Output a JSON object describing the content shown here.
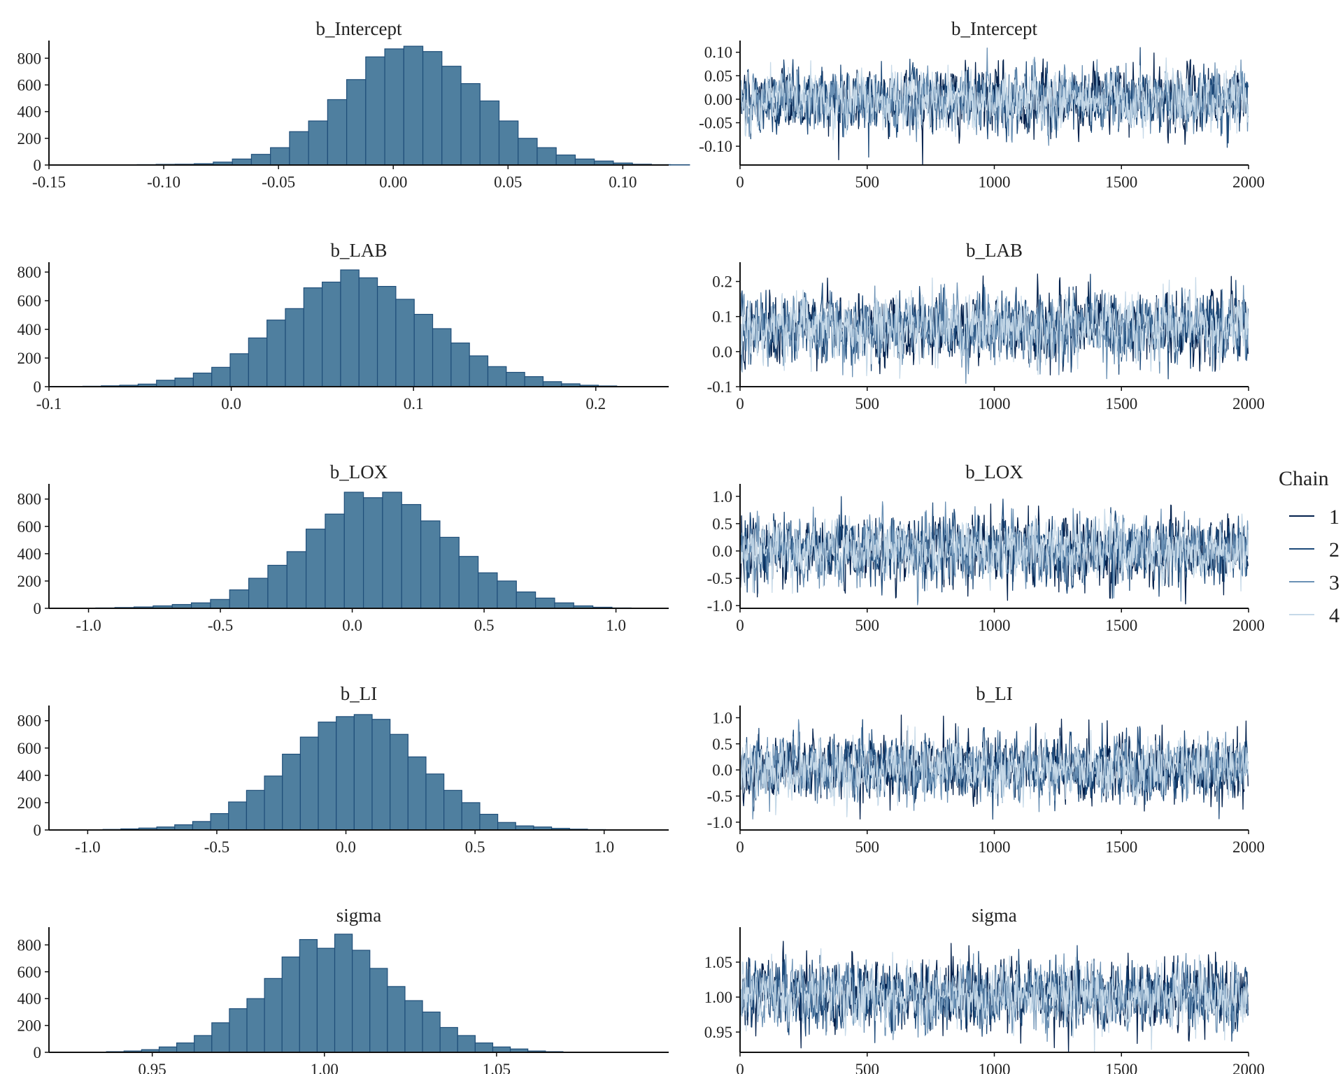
{
  "figure": {
    "colors": {
      "hist_fill": "#4f7f9f",
      "hist_border": "#1f4e79",
      "axis": "#111111",
      "chain_colors": [
        "#011f4b",
        "#1d4a7a",
        "#6a90b4",
        "#c6d9e8"
      ]
    },
    "legend": {
      "title": "Chain",
      "placement": "right",
      "items": [
        {
          "label": "1",
          "color": "#011f4b"
        },
        {
          "label": "2",
          "color": "#1d4a7a"
        },
        {
          "label": "3",
          "color": "#6a90b4"
        },
        {
          "label": "4",
          "color": "#c6d9e8"
        }
      ]
    }
  },
  "chart_data": [
    {
      "type": "bar",
      "title": "b_Intercept",
      "xlim": [
        -0.15,
        0.12
      ],
      "ylim": [
        0,
        880
      ],
      "xticks": [
        -0.15,
        -0.1,
        -0.05,
        0.0,
        0.05,
        0.1
      ],
      "xtick_labels": [
        "-0.15",
        "-0.10",
        "-0.05",
        "0.00",
        "0.05",
        "0.10"
      ],
      "yticks": [
        0,
        200,
        400,
        600,
        800
      ],
      "ytick_labels": [
        "0",
        "200",
        "400",
        "600",
        "800"
      ],
      "bin_width": 0.0083,
      "bin_start": -0.1365,
      "values": [
        1,
        1,
        2,
        3,
        5,
        6,
        10,
        22,
        45,
        80,
        130,
        250,
        330,
        490,
        640,
        810,
        870,
        890,
        850,
        740,
        610,
        480,
        330,
        200,
        130,
        75,
        45,
        30,
        15,
        6,
        3,
        2
      ]
    },
    {
      "type": "line",
      "title": "b_Intercept",
      "xlim": [
        0,
        2000
      ],
      "ylim": [
        -0.14,
        0.11
      ],
      "xticks": [
        0,
        500,
        1000,
        1500,
        2000
      ],
      "xtick_labels": [
        "0",
        "500",
        "1000",
        "1500",
        "2000"
      ],
      "yticks": [
        0.1,
        0.05,
        0.0,
        -0.05,
        -0.1
      ],
      "ytick_labels": [
        "0.10",
        "0.05",
        "0.00",
        "-0.05",
        "-0.10"
      ],
      "iterations": 2000,
      "series": [
        {
          "name": "1",
          "center": 0.0,
          "sd": 0.033
        },
        {
          "name": "2",
          "center": 0.0,
          "sd": 0.032
        },
        {
          "name": "3",
          "center": 0.0,
          "sd": 0.031
        },
        {
          "name": "4",
          "center": 0.0,
          "sd": 0.03
        }
      ]
    },
    {
      "type": "bar",
      "title": "b_LAB",
      "xlim": [
        -0.1,
        0.24
      ],
      "ylim": [
        0,
        820
      ],
      "xticks": [
        -0.1,
        0.0,
        0.1,
        0.2
      ],
      "xtick_labels": [
        "-0.1",
        "0.0",
        "0.1",
        "0.2"
      ],
      "yticks": [
        0,
        200,
        400,
        600,
        800
      ],
      "ytick_labels": [
        "0",
        "200",
        "400",
        "600",
        "800"
      ],
      "bin_width": 0.0101,
      "bin_start": -0.0915,
      "values": [
        1,
        3,
        6,
        10,
        18,
        45,
        60,
        95,
        135,
        230,
        340,
        465,
        545,
        690,
        730,
        815,
        760,
        700,
        610,
        505,
        405,
        305,
        215,
        140,
        100,
        70,
        35,
        20,
        10,
        5,
        2
      ]
    },
    {
      "type": "line",
      "title": "b_LAB",
      "xlim": [
        0,
        2000
      ],
      "ylim": [
        -0.1,
        0.235
      ],
      "xticks": [
        0,
        500,
        1000,
        1500,
        2000
      ],
      "xtick_labels": [
        "0",
        "500",
        "1000",
        "1500",
        "2000"
      ],
      "yticks": [
        0.2,
        0.1,
        0.0,
        -0.1
      ],
      "ytick_labels": [
        "0.2",
        "0.1",
        "0.0",
        "-0.1"
      ],
      "iterations": 2000,
      "series": [
        {
          "name": "1",
          "center": 0.068,
          "sd": 0.047
        },
        {
          "name": "2",
          "center": 0.068,
          "sd": 0.046
        },
        {
          "name": "3",
          "center": 0.068,
          "sd": 0.045
        },
        {
          "name": "4",
          "center": 0.068,
          "sd": 0.044
        }
      ]
    },
    {
      "type": "bar",
      "title": "b_LOX",
      "xlim": [
        -1.15,
        1.2
      ],
      "ylim": [
        0,
        860
      ],
      "xticks": [
        -1.0,
        -0.5,
        0.0,
        0.5,
        1.0
      ],
      "xtick_labels": [
        "-1.0",
        "-0.5",
        "0.0",
        "0.5",
        "1.0"
      ],
      "yticks": [
        0,
        200,
        400,
        600,
        800
      ],
      "ytick_labels": [
        "0",
        "200",
        "400",
        "600",
        "800"
      ],
      "bin_width": 0.0725,
      "bin_start": -1.045,
      "values": [
        1,
        3,
        6,
        10,
        18,
        28,
        40,
        65,
        135,
        220,
        315,
        415,
        580,
        690,
        850,
        810,
        850,
        760,
        640,
        520,
        380,
        260,
        200,
        120,
        75,
        40,
        18,
        8,
        3,
        1
      ]
    },
    {
      "type": "line",
      "title": "b_LOX",
      "xlim": [
        0,
        2000
      ],
      "ylim": [
        -1.05,
        1.1
      ],
      "xticks": [
        0,
        500,
        1000,
        1500,
        2000
      ],
      "xtick_labels": [
        "0",
        "500",
        "1000",
        "1500",
        "2000"
      ],
      "yticks": [
        1.0,
        0.5,
        0.0,
        -0.5,
        -1.0
      ],
      "ytick_labels": [
        "1.0",
        "0.5",
        "0.0",
        "-0.5",
        "-1.0"
      ],
      "iterations": 2000,
      "series": [
        {
          "name": "1",
          "center": 0.02,
          "sd": 0.3
        },
        {
          "name": "2",
          "center": 0.02,
          "sd": 0.29
        },
        {
          "name": "3",
          "center": 0.02,
          "sd": 0.28
        },
        {
          "name": "4",
          "center": 0.02,
          "sd": 0.27
        }
      ]
    },
    {
      "type": "bar",
      "title": "b_LI",
      "xlim": [
        -1.15,
        1.25
      ],
      "ylim": [
        0,
        860
      ],
      "xticks": [
        -1.0,
        -0.5,
        0.0,
        0.5,
        1.0
      ],
      "xtick_labels": [
        "-1.0",
        "-0.5",
        "0.0",
        "0.5",
        "1.0"
      ],
      "yticks": [
        0,
        200,
        400,
        600,
        800
      ],
      "ytick_labels": [
        "0",
        "200",
        "400",
        "600",
        "800"
      ],
      "bin_width": 0.0695,
      "bin_start": -1.08,
      "values": [
        1,
        2,
        4,
        8,
        14,
        22,
        38,
        62,
        120,
        205,
        290,
        395,
        555,
        680,
        790,
        830,
        845,
        810,
        700,
        535,
        410,
        290,
        200,
        115,
        55,
        30,
        22,
        12,
        6,
        3,
        1
      ]
    },
    {
      "type": "line",
      "title": "b_LI",
      "xlim": [
        0,
        2000
      ],
      "ylim": [
        -1.15,
        1.1
      ],
      "xticks": [
        0,
        500,
        1000,
        1500,
        2000
      ],
      "xtick_labels": [
        "0",
        "500",
        "1000",
        "1500",
        "2000"
      ],
      "yticks": [
        1.0,
        0.5,
        0.0,
        -0.5,
        -1.0
      ],
      "ytick_labels": [
        "1.0",
        "0.5",
        "0.0",
        "-0.5",
        "-1.0"
      ],
      "iterations": 2000,
      "series": [
        {
          "name": "1",
          "center": 0.03,
          "sd": 0.3
        },
        {
          "name": "2",
          "center": 0.03,
          "sd": 0.29
        },
        {
          "name": "3",
          "center": 0.03,
          "sd": 0.28
        },
        {
          "name": "4",
          "center": 0.03,
          "sd": 0.27
        }
      ]
    },
    {
      "type": "bar",
      "title": "sigma",
      "xlim": [
        0.92,
        1.1
      ],
      "ylim": [
        0,
        880
      ],
      "xticks": [
        0.95,
        1.0,
        1.05
      ],
      "xtick_labels": [
        "0.95",
        "1.00",
        "1.05"
      ],
      "yticks": [
        0,
        200,
        400,
        600,
        800
      ],
      "ytick_labels": [
        "0",
        "200",
        "400",
        "600",
        "800"
      ],
      "bin_width": 0.0051,
      "bin_start": 0.9265,
      "values": [
        1,
        2,
        5,
        10,
        20,
        40,
        70,
        125,
        220,
        325,
        400,
        550,
        710,
        840,
        775,
        880,
        760,
        625,
        490,
        385,
        300,
        185,
        125,
        70,
        40,
        25,
        10,
        5,
        2,
        1
      ]
    },
    {
      "type": "line",
      "title": "sigma",
      "xlim": [
        0,
        2000
      ],
      "ylim": [
        0.921,
        1.09
      ],
      "xticks": [
        0,
        500,
        1000,
        1500,
        2000
      ],
      "xtick_labels": [
        "0",
        "500",
        "1000",
        "1500",
        "2000"
      ],
      "yticks": [
        1.05,
        1.0,
        0.95
      ],
      "ytick_labels": [
        "1.05",
        "1.00",
        "0.95"
      ],
      "iterations": 2000,
      "series": [
        {
          "name": "1",
          "center": 1.003,
          "sd": 0.024
        },
        {
          "name": "2",
          "center": 1.003,
          "sd": 0.023
        },
        {
          "name": "3",
          "center": 1.003,
          "sd": 0.022
        },
        {
          "name": "4",
          "center": 1.003,
          "sd": 0.021
        }
      ]
    }
  ]
}
